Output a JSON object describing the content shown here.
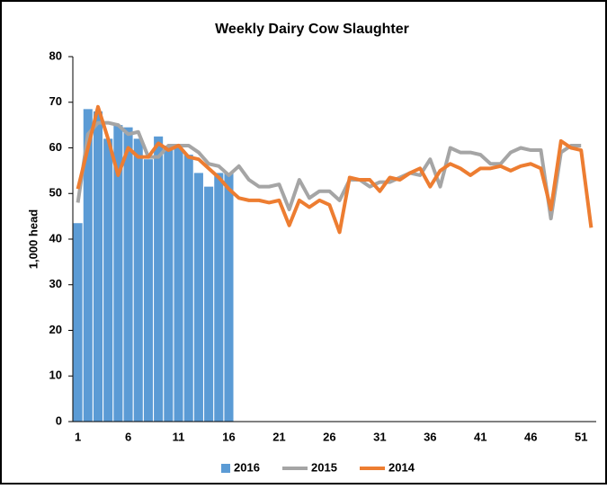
{
  "chart_data": {
    "type": "bar+line",
    "title": "Weekly Dairy Cow Slaughter",
    "y_label": "1,000 head",
    "categories": [
      1,
      null,
      null,
      null,
      null,
      6,
      null,
      null,
      null,
      null,
      11,
      null,
      null,
      null,
      null,
      16,
      null,
      null,
      null,
      null,
      21,
      null,
      null,
      null,
      null,
      26,
      null,
      null,
      null,
      null,
      31,
      null,
      null,
      null,
      null,
      36,
      null,
      null,
      null,
      null,
      41,
      null,
      null,
      null,
      null,
      46,
      null,
      null,
      null,
      null,
      51,
      null
    ],
    "ylim": [
      0,
      80
    ],
    "yticks": [
      0,
      10,
      20,
      30,
      40,
      50,
      60,
      70,
      80
    ],
    "grid": false,
    "series": [
      {
        "name": "2016",
        "type": "bar",
        "color": "#5b9bd5",
        "values": [
          43.5,
          68.5,
          68,
          62,
          65,
          64.5,
          62,
          57.5,
          62.5,
          60.5,
          60,
          58.5,
          54.5,
          51.5,
          54.5,
          54.5,
          null,
          null,
          null,
          null,
          null,
          null,
          null,
          null,
          null,
          null,
          null,
          null,
          null,
          null,
          null,
          null,
          null,
          null,
          null,
          null,
          null,
          null,
          null,
          null,
          null,
          null,
          null,
          null,
          null,
          null,
          null,
          null,
          null,
          null,
          null,
          null
        ]
      },
      {
        "name": "2015",
        "type": "line",
        "color": "#a5a5a5",
        "values": [
          48,
          63,
          65.5,
          65.5,
          65,
          63,
          63.5,
          58,
          58,
          60.5,
          60.5,
          60.5,
          59,
          56.5,
          56,
          54,
          56,
          53,
          51.5,
          51.5,
          52,
          46.5,
          53,
          49,
          50.5,
          50.5,
          48.5,
          53,
          53,
          51.5,
          52.5,
          52.5,
          53.5,
          54.5,
          54,
          57.5,
          51.5,
          60,
          59,
          59,
          58.5,
          56.5,
          56.5,
          59,
          60,
          59.5,
          59.5,
          44.5,
          59,
          60.5,
          60.5,
          null
        ]
      },
      {
        "name": "2014",
        "type": "line",
        "color": "#ed7d31",
        "values": [
          51,
          60,
          69,
          62,
          54,
          60,
          58,
          58,
          61,
          59.5,
          60.5,
          58,
          57.5,
          55.5,
          53.5,
          51,
          49,
          48.5,
          48.5,
          48,
          48.5,
          43,
          48.5,
          47,
          48.5,
          47.5,
          41.5,
          53.5,
          53,
          53,
          50.5,
          53.5,
          53,
          54.5,
          55.5,
          51.5,
          55,
          56.5,
          55.5,
          54,
          55.5,
          55.5,
          56,
          55,
          56,
          56.5,
          55.5,
          46.5,
          61.5,
          60,
          59.5,
          42.5
        ]
      }
    ]
  }
}
